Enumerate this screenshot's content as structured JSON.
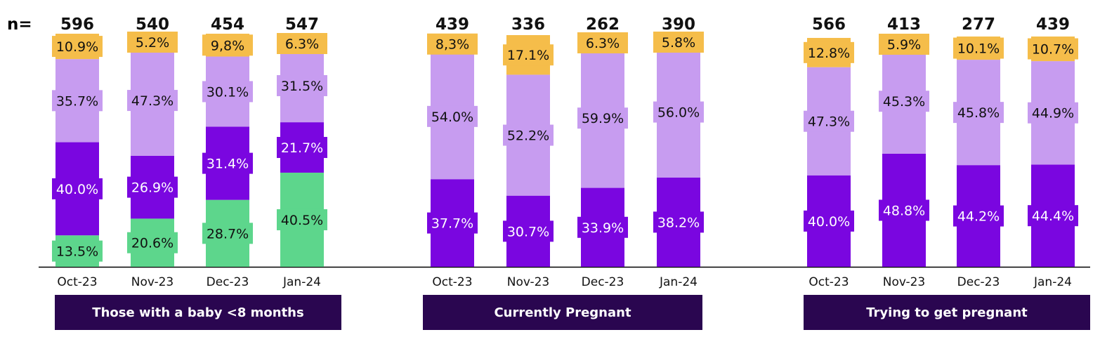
{
  "n_label": "n=",
  "chart_data": {
    "type": "bar",
    "stacked": true,
    "colors": {
      "green": "#5dd68c",
      "purple": "#7a06e0",
      "lavender": "#c79cf0",
      "yellow": "#f5bd4a",
      "group_box": "#2a0650",
      "group_text": "#ffffff"
    },
    "groups": [
      {
        "label": "Those with a baby <8 months",
        "bars": [
          {
            "category": "Oct-23",
            "n": "596",
            "segments": [
              {
                "color": "green",
                "value": 13.5,
                "label": "13.5%"
              },
              {
                "color": "purple",
                "value": 40.0,
                "label": "40.0%"
              },
              {
                "color": "lavender",
                "value": 35.7,
                "label": "35.7%"
              },
              {
                "color": "yellow",
                "value": 10.9,
                "label": "10.9%"
              }
            ]
          },
          {
            "category": "Nov-23",
            "n": "540",
            "segments": [
              {
                "color": "green",
                "value": 20.6,
                "label": "20.6%"
              },
              {
                "color": "purple",
                "value": 26.9,
                "label": "26.9%"
              },
              {
                "color": "lavender",
                "value": 47.3,
                "label": "47.3%"
              },
              {
                "color": "yellow",
                "value": 5.2,
                "label": "5.2%"
              }
            ]
          },
          {
            "category": "Dec-23",
            "n": "454",
            "segments": [
              {
                "color": "green",
                "value": 28.7,
                "label": "28.7%"
              },
              {
                "color": "purple",
                "value": 31.4,
                "label": "31.4%"
              },
              {
                "color": "lavender",
                "value": 30.1,
                "label": "30.1%"
              },
              {
                "color": "yellow",
                "value": 9.8,
                "label": "9,8%"
              }
            ]
          },
          {
            "category": "Jan-24",
            "n": "547",
            "segments": [
              {
                "color": "green",
                "value": 40.5,
                "label": "40.5%"
              },
              {
                "color": "purple",
                "value": 21.7,
                "label": "21.7%"
              },
              {
                "color": "lavender",
                "value": 31.5,
                "label": "31.5%"
              },
              {
                "color": "yellow",
                "value": 6.3,
                "label": "6.3%"
              }
            ]
          }
        ]
      },
      {
        "label": "Currently Pregnant",
        "bars": [
          {
            "category": "Oct-23",
            "n": "439",
            "segments": [
              {
                "color": "purple",
                "value": 37.7,
                "label": "37.7%"
              },
              {
                "color": "lavender",
                "value": 54.0,
                "label": "54.0%"
              },
              {
                "color": "yellow",
                "value": 8.3,
                "label": "8,3%"
              }
            ]
          },
          {
            "category": "Nov-23",
            "n": "336",
            "segments": [
              {
                "color": "purple",
                "value": 30.7,
                "label": "30.7%"
              },
              {
                "color": "lavender",
                "value": 52.2,
                "label": "52.2%"
              },
              {
                "color": "yellow",
                "value": 17.1,
                "label": "17.1%"
              }
            ]
          },
          {
            "category": "Dec-23",
            "n": "262",
            "segments": [
              {
                "color": "purple",
                "value": 33.9,
                "label": "33.9%"
              },
              {
                "color": "lavender",
                "value": 59.9,
                "label": "59.9%"
              },
              {
                "color": "yellow",
                "value": 6.3,
                "label": "6.3%"
              }
            ]
          },
          {
            "category": "Jan-24",
            "n": "390",
            "segments": [
              {
                "color": "purple",
                "value": 38.2,
                "label": "38.2%"
              },
              {
                "color": "lavender",
                "value": 56.0,
                "label": "56.0%"
              },
              {
                "color": "yellow",
                "value": 5.8,
                "label": "5.8%"
              }
            ]
          }
        ]
      },
      {
        "label": "Trying to get pregnant",
        "bars": [
          {
            "category": "Oct-23",
            "n": "566",
            "segments": [
              {
                "color": "purple",
                "value": 40.0,
                "label": "40.0%"
              },
              {
                "color": "lavender",
                "value": 47.3,
                "label": "47.3%"
              },
              {
                "color": "yellow",
                "value": 12.8,
                "label": "12.8%"
              }
            ]
          },
          {
            "category": "Nov-23",
            "n": "413",
            "segments": [
              {
                "color": "purple",
                "value": 48.8,
                "label": "48.8%"
              },
              {
                "color": "lavender",
                "value": 45.3,
                "label": "45.3%"
              },
              {
                "color": "yellow",
                "value": 5.9,
                "label": "5.9%"
              }
            ]
          },
          {
            "category": "Dec-23",
            "n": "277",
            "segments": [
              {
                "color": "purple",
                "value": 44.2,
                "label": "44.2%"
              },
              {
                "color": "lavender",
                "value": 45.8,
                "label": "45.8%"
              },
              {
                "color": "yellow",
                "value": 10.1,
                "label": "10.1%"
              }
            ]
          },
          {
            "category": "Jan-24",
            "n": "439",
            "segments": [
              {
                "color": "purple",
                "value": 44.4,
                "label": "44.4%"
              },
              {
                "color": "lavender",
                "value": 44.9,
                "label": "44.9%"
              },
              {
                "color": "yellow",
                "value": 10.7,
                "label": "10.7%"
              }
            ]
          }
        ]
      }
    ]
  }
}
